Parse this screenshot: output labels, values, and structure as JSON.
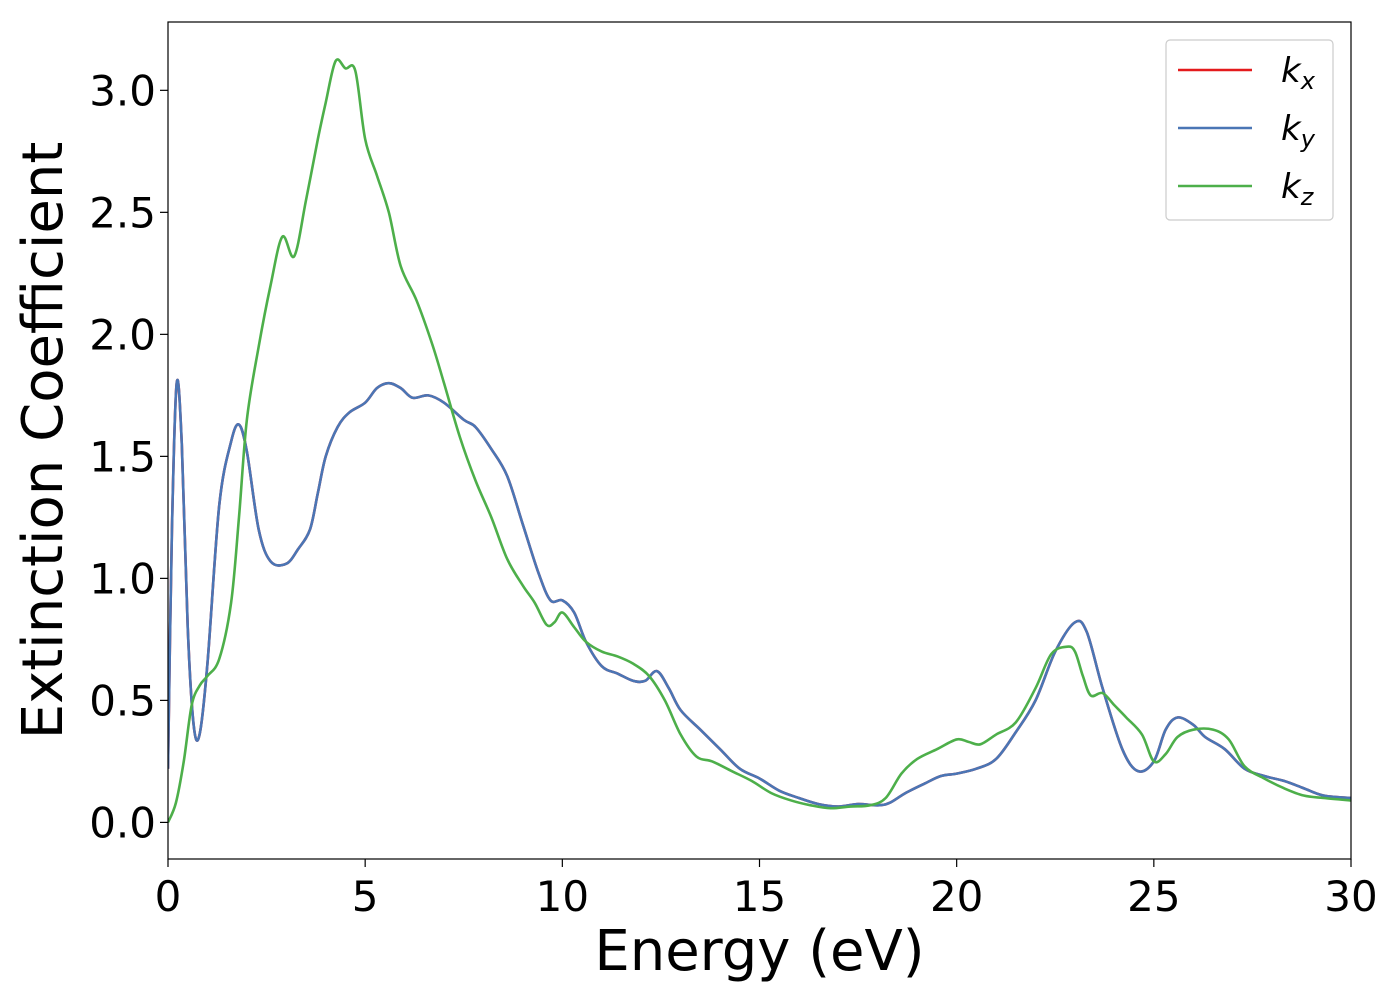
{
  "chart_data": {
    "type": "line",
    "title": "",
    "xlabel": "Energy (eV)",
    "ylabel": "Extinction Coefficient",
    "xlim": [
      0,
      30
    ],
    "ylim": [
      -0.15,
      3.28
    ],
    "xticks": [
      0,
      5,
      10,
      15,
      20,
      25,
      30
    ],
    "xtick_labels": [
      "0",
      "5",
      "10",
      "15",
      "20",
      "25",
      "30"
    ],
    "yticks": [
      0.0,
      0.5,
      1.0,
      1.5,
      2.0,
      2.5,
      3.0
    ],
    "ytick_labels": [
      "0.0",
      "0.5",
      "1.0",
      "1.5",
      "2.0",
      "2.5",
      "3.0"
    ],
    "grid": false,
    "legend_position": "top-right",
    "series": [
      {
        "name": "k",
        "subscript": "x",
        "color": "#e41a1c",
        "points": [
          [
            0,
            0.22
          ],
          [
            0.1,
            1.2
          ],
          [
            0.22,
            1.8
          ],
          [
            0.35,
            1.55
          ],
          [
            0.5,
            0.8
          ],
          [
            0.65,
            0.4
          ],
          [
            0.8,
            0.36
          ],
          [
            1.0,
            0.65
          ],
          [
            1.3,
            1.3
          ],
          [
            1.6,
            1.56
          ],
          [
            1.8,
            1.63
          ],
          [
            2.0,
            1.52
          ],
          [
            2.3,
            1.2
          ],
          [
            2.6,
            1.07
          ],
          [
            3.0,
            1.06
          ],
          [
            3.3,
            1.12
          ],
          [
            3.6,
            1.2
          ],
          [
            3.8,
            1.35
          ],
          [
            4.0,
            1.5
          ],
          [
            4.3,
            1.62
          ],
          [
            4.6,
            1.68
          ],
          [
            5.0,
            1.72
          ],
          [
            5.3,
            1.78
          ],
          [
            5.6,
            1.8
          ],
          [
            5.9,
            1.78
          ],
          [
            6.2,
            1.74
          ],
          [
            6.6,
            1.75
          ],
          [
            7.0,
            1.72
          ],
          [
            7.5,
            1.65
          ],
          [
            7.8,
            1.62
          ],
          [
            8.2,
            1.53
          ],
          [
            8.6,
            1.42
          ],
          [
            9.0,
            1.22
          ],
          [
            9.4,
            1.02
          ],
          [
            9.7,
            0.91
          ],
          [
            10.0,
            0.91
          ],
          [
            10.3,
            0.86
          ],
          [
            10.6,
            0.74
          ],
          [
            11.0,
            0.64
          ],
          [
            11.4,
            0.61
          ],
          [
            11.8,
            0.58
          ],
          [
            12.1,
            0.58
          ],
          [
            12.4,
            0.62
          ],
          [
            12.7,
            0.55
          ],
          [
            13.0,
            0.46
          ],
          [
            13.5,
            0.38
          ],
          [
            14.0,
            0.3
          ],
          [
            14.5,
            0.22
          ],
          [
            15.0,
            0.18
          ],
          [
            15.5,
            0.13
          ],
          [
            16.0,
            0.1
          ],
          [
            16.5,
            0.075
          ],
          [
            17.0,
            0.065
          ],
          [
            17.5,
            0.075
          ],
          [
            18.0,
            0.07
          ],
          [
            18.3,
            0.08
          ],
          [
            18.7,
            0.12
          ],
          [
            19.2,
            0.16
          ],
          [
            19.6,
            0.19
          ],
          [
            20.0,
            0.2
          ],
          [
            20.5,
            0.22
          ],
          [
            21.0,
            0.26
          ],
          [
            21.5,
            0.37
          ],
          [
            22.0,
            0.5
          ],
          [
            22.5,
            0.7
          ],
          [
            23.0,
            0.82
          ],
          [
            23.3,
            0.78
          ],
          [
            23.7,
            0.55
          ],
          [
            24.2,
            0.3
          ],
          [
            24.6,
            0.21
          ],
          [
            25.0,
            0.25
          ],
          [
            25.3,
            0.38
          ],
          [
            25.6,
            0.43
          ],
          [
            26.0,
            0.4
          ],
          [
            26.3,
            0.35
          ],
          [
            26.8,
            0.3
          ],
          [
            27.3,
            0.22
          ],
          [
            27.8,
            0.19
          ],
          [
            28.3,
            0.17
          ],
          [
            28.8,
            0.14
          ],
          [
            29.3,
            0.11
          ],
          [
            30,
            0.1
          ]
        ]
      },
      {
        "name": "k",
        "subscript": "y",
        "color": "#4a76b5",
        "points": [
          [
            0,
            0.22
          ],
          [
            0.1,
            1.2
          ],
          [
            0.22,
            1.8
          ],
          [
            0.35,
            1.55
          ],
          [
            0.5,
            0.8
          ],
          [
            0.65,
            0.4
          ],
          [
            0.8,
            0.36
          ],
          [
            1.0,
            0.65
          ],
          [
            1.3,
            1.3
          ],
          [
            1.6,
            1.56
          ],
          [
            1.8,
            1.63
          ],
          [
            2.0,
            1.52
          ],
          [
            2.3,
            1.2
          ],
          [
            2.6,
            1.07
          ],
          [
            3.0,
            1.06
          ],
          [
            3.3,
            1.12
          ],
          [
            3.6,
            1.2
          ],
          [
            3.8,
            1.35
          ],
          [
            4.0,
            1.5
          ],
          [
            4.3,
            1.62
          ],
          [
            4.6,
            1.68
          ],
          [
            5.0,
            1.72
          ],
          [
            5.3,
            1.78
          ],
          [
            5.6,
            1.8
          ],
          [
            5.9,
            1.78
          ],
          [
            6.2,
            1.74
          ],
          [
            6.6,
            1.75
          ],
          [
            7.0,
            1.72
          ],
          [
            7.5,
            1.65
          ],
          [
            7.8,
            1.62
          ],
          [
            8.2,
            1.53
          ],
          [
            8.6,
            1.42
          ],
          [
            9.0,
            1.22
          ],
          [
            9.4,
            1.02
          ],
          [
            9.7,
            0.91
          ],
          [
            10.0,
            0.91
          ],
          [
            10.3,
            0.86
          ],
          [
            10.6,
            0.74
          ],
          [
            11.0,
            0.64
          ],
          [
            11.4,
            0.61
          ],
          [
            11.8,
            0.58
          ],
          [
            12.1,
            0.58
          ],
          [
            12.4,
            0.62
          ],
          [
            12.7,
            0.55
          ],
          [
            13.0,
            0.46
          ],
          [
            13.5,
            0.38
          ],
          [
            14.0,
            0.3
          ],
          [
            14.5,
            0.22
          ],
          [
            15.0,
            0.18
          ],
          [
            15.5,
            0.13
          ],
          [
            16.0,
            0.1
          ],
          [
            16.5,
            0.075
          ],
          [
            17.0,
            0.065
          ],
          [
            17.5,
            0.075
          ],
          [
            18.0,
            0.07
          ],
          [
            18.3,
            0.08
          ],
          [
            18.7,
            0.12
          ],
          [
            19.2,
            0.16
          ],
          [
            19.6,
            0.19
          ],
          [
            20.0,
            0.2
          ],
          [
            20.5,
            0.22
          ],
          [
            21.0,
            0.26
          ],
          [
            21.5,
            0.37
          ],
          [
            22.0,
            0.5
          ],
          [
            22.5,
            0.7
          ],
          [
            23.0,
            0.82
          ],
          [
            23.3,
            0.78
          ],
          [
            23.7,
            0.55
          ],
          [
            24.2,
            0.3
          ],
          [
            24.6,
            0.21
          ],
          [
            25.0,
            0.25
          ],
          [
            25.3,
            0.38
          ],
          [
            25.6,
            0.43
          ],
          [
            26.0,
            0.4
          ],
          [
            26.3,
            0.35
          ],
          [
            26.8,
            0.3
          ],
          [
            27.3,
            0.22
          ],
          [
            27.8,
            0.19
          ],
          [
            28.3,
            0.17
          ],
          [
            28.8,
            0.14
          ],
          [
            29.3,
            0.11
          ],
          [
            30,
            0.1
          ]
        ]
      },
      {
        "name": "k",
        "subscript": "z",
        "color": "#4daf4a",
        "points": [
          [
            0,
            0.0
          ],
          [
            0.2,
            0.08
          ],
          [
            0.4,
            0.25
          ],
          [
            0.6,
            0.48
          ],
          [
            0.8,
            0.56
          ],
          [
            1.0,
            0.6
          ],
          [
            1.3,
            0.67
          ],
          [
            1.6,
            0.9
          ],
          [
            1.8,
            1.25
          ],
          [
            2.0,
            1.65
          ],
          [
            2.3,
            1.95
          ],
          [
            2.6,
            2.2
          ],
          [
            2.9,
            2.4
          ],
          [
            3.2,
            2.32
          ],
          [
            3.5,
            2.55
          ],
          [
            3.8,
            2.8
          ],
          [
            4.0,
            2.95
          ],
          [
            4.25,
            3.12
          ],
          [
            4.5,
            3.09
          ],
          [
            4.75,
            3.08
          ],
          [
            5.0,
            2.8
          ],
          [
            5.3,
            2.65
          ],
          [
            5.6,
            2.5
          ],
          [
            5.9,
            2.28
          ],
          [
            6.3,
            2.14
          ],
          [
            6.7,
            1.96
          ],
          [
            7.0,
            1.8
          ],
          [
            7.4,
            1.58
          ],
          [
            7.8,
            1.4
          ],
          [
            8.2,
            1.25
          ],
          [
            8.6,
            1.08
          ],
          [
            9.0,
            0.97
          ],
          [
            9.3,
            0.9
          ],
          [
            9.6,
            0.81
          ],
          [
            9.8,
            0.82
          ],
          [
            10.0,
            0.86
          ],
          [
            10.3,
            0.8
          ],
          [
            10.6,
            0.74
          ],
          [
            11.0,
            0.7
          ],
          [
            11.4,
            0.68
          ],
          [
            11.8,
            0.65
          ],
          [
            12.2,
            0.6
          ],
          [
            12.6,
            0.5
          ],
          [
            13.0,
            0.36
          ],
          [
            13.4,
            0.27
          ],
          [
            13.8,
            0.25
          ],
          [
            14.3,
            0.21
          ],
          [
            14.8,
            0.17
          ],
          [
            15.3,
            0.12
          ],
          [
            15.8,
            0.09
          ],
          [
            16.3,
            0.07
          ],
          [
            16.8,
            0.058
          ],
          [
            17.3,
            0.065
          ],
          [
            17.8,
            0.07
          ],
          [
            18.2,
            0.1
          ],
          [
            18.6,
            0.2
          ],
          [
            19.0,
            0.26
          ],
          [
            19.5,
            0.3
          ],
          [
            20.0,
            0.34
          ],
          [
            20.3,
            0.33
          ],
          [
            20.6,
            0.32
          ],
          [
            21.0,
            0.36
          ],
          [
            21.5,
            0.41
          ],
          [
            22.0,
            0.55
          ],
          [
            22.4,
            0.69
          ],
          [
            22.8,
            0.72
          ],
          [
            23.0,
            0.7
          ],
          [
            23.2,
            0.6
          ],
          [
            23.4,
            0.52
          ],
          [
            23.7,
            0.53
          ],
          [
            24.0,
            0.48
          ],
          [
            24.3,
            0.43
          ],
          [
            24.7,
            0.36
          ],
          [
            25.0,
            0.25
          ],
          [
            25.3,
            0.28
          ],
          [
            25.6,
            0.35
          ],
          [
            26.0,
            0.38
          ],
          [
            26.5,
            0.38
          ],
          [
            26.9,
            0.34
          ],
          [
            27.3,
            0.23
          ],
          [
            27.8,
            0.18
          ],
          [
            28.3,
            0.14
          ],
          [
            28.8,
            0.11
          ],
          [
            29.3,
            0.1
          ],
          [
            30,
            0.09
          ]
        ]
      }
    ]
  }
}
